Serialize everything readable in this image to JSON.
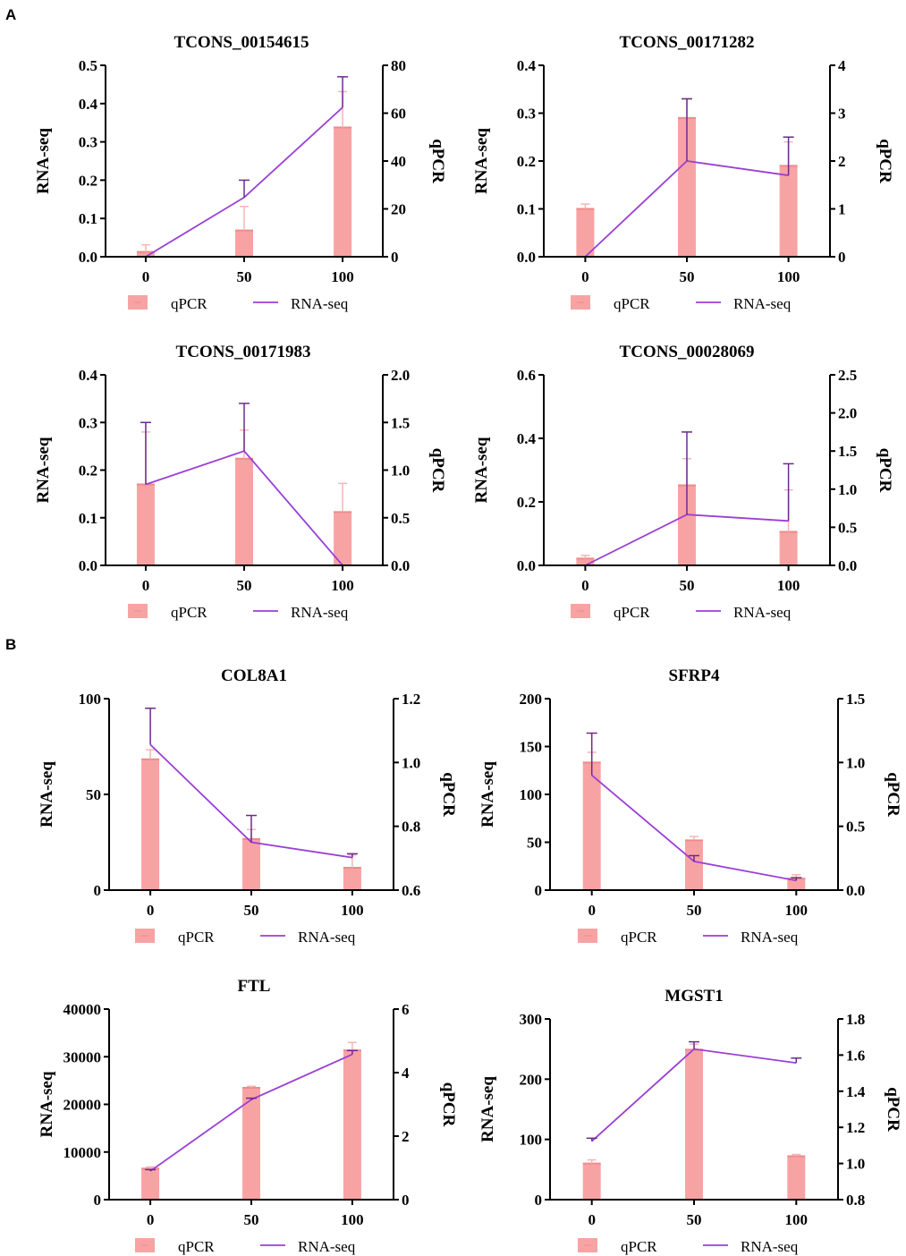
{
  "figure": {
    "panel_labels": [
      "A",
      "B"
    ],
    "legend": {
      "bar_label": "qPCR",
      "line_label": "RNA-seq"
    },
    "colors": {
      "bar": "#f8a3a3",
      "bar_edge": "#ee8a8a",
      "bar_error": "#f4b5b5",
      "line": "#9a3fd6",
      "error": "#6d2a8a",
      "axis": "#000000"
    }
  },
  "chart_data": [
    {
      "type": "bar+line",
      "title": "TCONS_00154615",
      "categories": [
        "0",
        "50",
        "100"
      ],
      "xlabel": "",
      "ylabel_left": "RNA-seq",
      "ylabel_right": "qPCR",
      "left_ticks": [
        "0.0",
        "0.1",
        "0.2",
        "0.3",
        "0.4",
        "0.5"
      ],
      "left_range": [
        0,
        0.5
      ],
      "right_ticks": [
        "0",
        "20",
        "40",
        "60",
        "80"
      ],
      "right_range": [
        0,
        80
      ],
      "qPCR_values": [
        2,
        11,
        54
      ],
      "qPCR_error": [
        3,
        10,
        15
      ],
      "rnaseq_values": [
        0.0,
        0.155,
        0.39
      ],
      "rnaseq_error": [
        0.0,
        0.045,
        0.08
      ]
    },
    {
      "type": "bar+line",
      "title": "TCONS_00171282",
      "categories": [
        "0",
        "50",
        "100"
      ],
      "xlabel": "",
      "ylabel_left": "RNA-seq",
      "ylabel_right": "qPCR",
      "left_ticks": [
        "0.0",
        "0.1",
        "0.2",
        "0.3",
        "0.4"
      ],
      "left_range": [
        0,
        0.4
      ],
      "right_ticks": [
        "0",
        "1",
        "2",
        "3",
        "4"
      ],
      "right_range": [
        0,
        4
      ],
      "qPCR_values": [
        1.0,
        2.9,
        1.9
      ],
      "qPCR_error": [
        0.1,
        0.4,
        0.5
      ],
      "rnaseq_values": [
        0.0,
        0.2,
        0.17
      ],
      "rnaseq_error": [
        0.0,
        0.13,
        0.08
      ]
    },
    {
      "type": "bar+line",
      "title": "TCONS_00171983",
      "categories": [
        "0",
        "50",
        "100"
      ],
      "xlabel": "",
      "ylabel_left": "RNA-seq",
      "ylabel_right": "qPCR",
      "left_ticks": [
        "0.0",
        "0.1",
        "0.2",
        "0.3",
        "0.4"
      ],
      "left_range": [
        0,
        0.4
      ],
      "right_ticks": [
        "0.0",
        "0.5",
        "1.0",
        "1.5",
        "2.0"
      ],
      "right_range": [
        0,
        2.0
      ],
      "qPCR_values": [
        0.85,
        1.12,
        0.56
      ],
      "qPCR_error": [
        0.55,
        0.3,
        0.3
      ],
      "rnaseq_values": [
        0.17,
        0.24,
        0.0
      ],
      "rnaseq_error": [
        0.13,
        0.1,
        0.0
      ]
    },
    {
      "type": "bar+line",
      "title": "TCONS_00028069",
      "categories": [
        "0",
        "50",
        "100"
      ],
      "xlabel": "",
      "ylabel_left": "RNA-seq",
      "ylabel_right": "qPCR",
      "left_ticks": [
        "0.0",
        "0.2",
        "0.4",
        "0.6"
      ],
      "left_range": [
        0,
        0.6
      ],
      "right_ticks": [
        "0.0",
        "0.5",
        "1.0",
        "1.5",
        "2.0",
        "2.5"
      ],
      "right_range": [
        0,
        2.5
      ],
      "qPCR_values": [
        0.09,
        1.05,
        0.44
      ],
      "qPCR_error": [
        0.04,
        0.35,
        0.55
      ],
      "rnaseq_values": [
        0.0,
        0.16,
        0.14
      ],
      "rnaseq_error": [
        0.0,
        0.26,
        0.18
      ]
    },
    {
      "type": "bar+line",
      "title": "COL8A1",
      "categories": [
        "0",
        "50",
        "100"
      ],
      "xlabel": "",
      "ylabel_left": "RNA-seq",
      "ylabel_right": "qPCR",
      "left_ticks": [
        "0",
        "50",
        "100"
      ],
      "left_range": [
        0,
        100
      ],
      "right_ticks": [
        "0.6",
        "0.8",
        "1.0",
        "1.2"
      ],
      "right_range": [
        0.6,
        1.2
      ],
      "qPCR_values": [
        1.01,
        0.76,
        0.67
      ],
      "qPCR_error": [
        0.03,
        0.03,
        0.04
      ],
      "rnaseq_values": [
        76,
        25,
        17
      ],
      "rnaseq_error": [
        19,
        14,
        2
      ]
    },
    {
      "type": "bar+line",
      "title": "SFRP4",
      "categories": [
        "0",
        "50",
        "100"
      ],
      "xlabel": "",
      "ylabel_left": "RNA-seq",
      "ylabel_right": "qPCR",
      "left_ticks": [
        "0",
        "50",
        "100",
        "150",
        "200"
      ],
      "left_range": [
        0,
        200
      ],
      "right_ticks": [
        "0.0",
        "0.5",
        "1.0",
        "1.5"
      ],
      "right_range": [
        0,
        1.5
      ],
      "qPCR_values": [
        1.0,
        0.39,
        0.09
      ],
      "qPCR_error": [
        0.08,
        0.03,
        0.03
      ],
      "rnaseq_values": [
        120,
        30,
        10
      ],
      "rnaseq_error": [
        44,
        6,
        3
      ]
    },
    {
      "type": "bar+line",
      "title": "FTL",
      "categories": [
        "0",
        "50",
        "100"
      ],
      "xlabel": "",
      "ylabel_left": "RNA-seq",
      "ylabel_right": "qPCR",
      "left_ticks": [
        "0",
        "10000",
        "20000",
        "30000",
        "40000"
      ],
      "left_range": [
        0,
        40000
      ],
      "right_ticks": [
        "0",
        "2",
        "4",
        "6"
      ],
      "right_range": [
        0,
        6
      ],
      "qPCR_values": [
        0.98,
        3.52,
        4.7
      ],
      "qPCR_error": [
        0.05,
        0.05,
        0.25
      ],
      "rnaseq_values": [
        6000,
        21000,
        30500
      ],
      "rnaseq_error": [
        300,
        300,
        800
      ]
    },
    {
      "type": "bar+line",
      "title": "MGST1",
      "categories": [
        "0",
        "50",
        "100"
      ],
      "xlabel": "",
      "ylabel_left": "RNA-seq",
      "ylabel_right": "qPCR",
      "left_ticks": [
        "0",
        "100",
        "200",
        "300"
      ],
      "left_range": [
        0,
        300
      ],
      "right_ticks": [
        "0.8",
        "1.0",
        "1.2",
        "1.4",
        "1.6",
        "1.8"
      ],
      "right_range": [
        0.8,
        1.8
      ],
      "qPCR_values": [
        1.0,
        1.63,
        1.04
      ],
      "qPCR_error": [
        0.02,
        0.03,
        0.01
      ],
      "rnaseq_values": [
        97,
        250,
        227
      ],
      "rnaseq_error": [
        5,
        12,
        8
      ]
    }
  ]
}
